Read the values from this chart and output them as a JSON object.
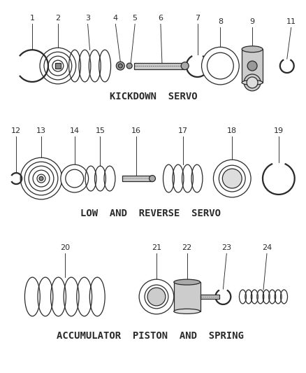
{
  "bg_color": "#ffffff",
  "line_color": "#2a2a2a",
  "section1_label": "KICKDOWN  SERVO",
  "section2_label": "LOW  AND  REVERSE  SERVO",
  "section3_label": "ACCUMULATOR  PISTON  AND  SPRING",
  "font_size_label": 10,
  "font_size_num": 8
}
